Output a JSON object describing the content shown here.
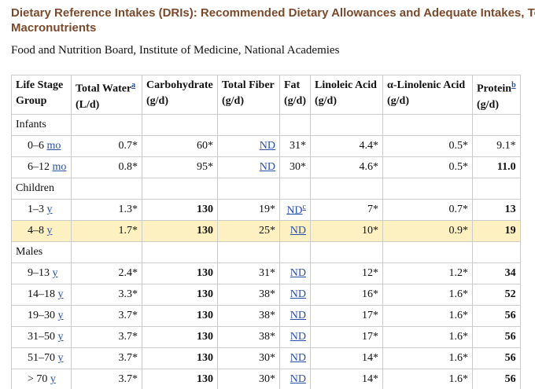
{
  "header": {
    "title_lines": [
      "Dietary Reference Intakes (DRIs): Recommended Dietary Allowances and Adequate Intakes, To",
      "Macronutrients"
    ],
    "subtitle": "Food and Nutrition Board, Institute of Medicine, National Academies"
  },
  "table": {
    "columns": [
      {
        "label": "Life Stage Group"
      },
      {
        "label": "Total Water",
        "sup": "a",
        "unit": "(L/d)"
      },
      {
        "label": "Carbohydrate",
        "unit": "(g/d)"
      },
      {
        "label": "Total Fiber",
        "unit": "(g/d)"
      },
      {
        "label": "Fat",
        "unit": "(g/d)"
      },
      {
        "label": "Linoleic Acid",
        "unit": "(g/d)"
      },
      {
        "label": "α-Linolenic Acid",
        "unit": "(g/d)"
      },
      {
        "label": "Protein",
        "sup": "b",
        "unit": "(g/d)"
      }
    ],
    "rows": [
      {
        "group": "Infants"
      },
      {
        "age": "0–6",
        "unit": "mo",
        "cells": [
          "0.7*",
          "60*",
          "ND",
          "31*",
          "4.4*",
          "0.5*",
          "9.1*"
        ]
      },
      {
        "age": "6–12",
        "unit": "mo",
        "cells": [
          "0.8*",
          "95*",
          "ND",
          "30*",
          "4.6*",
          "0.5*",
          "11.0"
        ]
      },
      {
        "group": "Children"
      },
      {
        "age": "1–3",
        "unit": "y",
        "cells": [
          "1.3*",
          "130",
          "19*",
          {
            "text": "ND",
            "sup": "c"
          },
          "7*",
          "0.7*",
          "13"
        ]
      },
      {
        "age": "4–8",
        "unit": "y",
        "highlight": true,
        "cells": [
          "1.7*",
          "130",
          "25*",
          "ND",
          "10*",
          "0.9*",
          "19"
        ]
      },
      {
        "group": "Males"
      },
      {
        "age": "9–13",
        "unit": "y",
        "cells": [
          "2.4*",
          "130",
          "31*",
          "ND",
          "12*",
          "1.2*",
          "34"
        ]
      },
      {
        "age": "14–18",
        "unit": "y",
        "cells": [
          "3.3*",
          "130",
          "38*",
          "ND",
          "16*",
          "1.6*",
          "52"
        ]
      },
      {
        "age": "19–30",
        "unit": "y",
        "cells": [
          "3.7*",
          "130",
          "38*",
          "ND",
          "17*",
          "1.6*",
          "56"
        ]
      },
      {
        "age": "31–50",
        "unit": "y",
        "cells": [
          "3.7*",
          "130",
          "38*",
          "ND",
          "17*",
          "1.6*",
          "56"
        ]
      },
      {
        "age": "51–70",
        "unit": "y",
        "cells": [
          "3.7*",
          "130",
          "30*",
          "ND",
          "14*",
          "1.6*",
          "56"
        ]
      },
      {
        "age": "> 70",
        "unit": "y",
        "cells": [
          "3.7*",
          "130",
          "30*",
          "ND",
          "14*",
          "1.6*",
          "56"
        ]
      }
    ]
  }
}
